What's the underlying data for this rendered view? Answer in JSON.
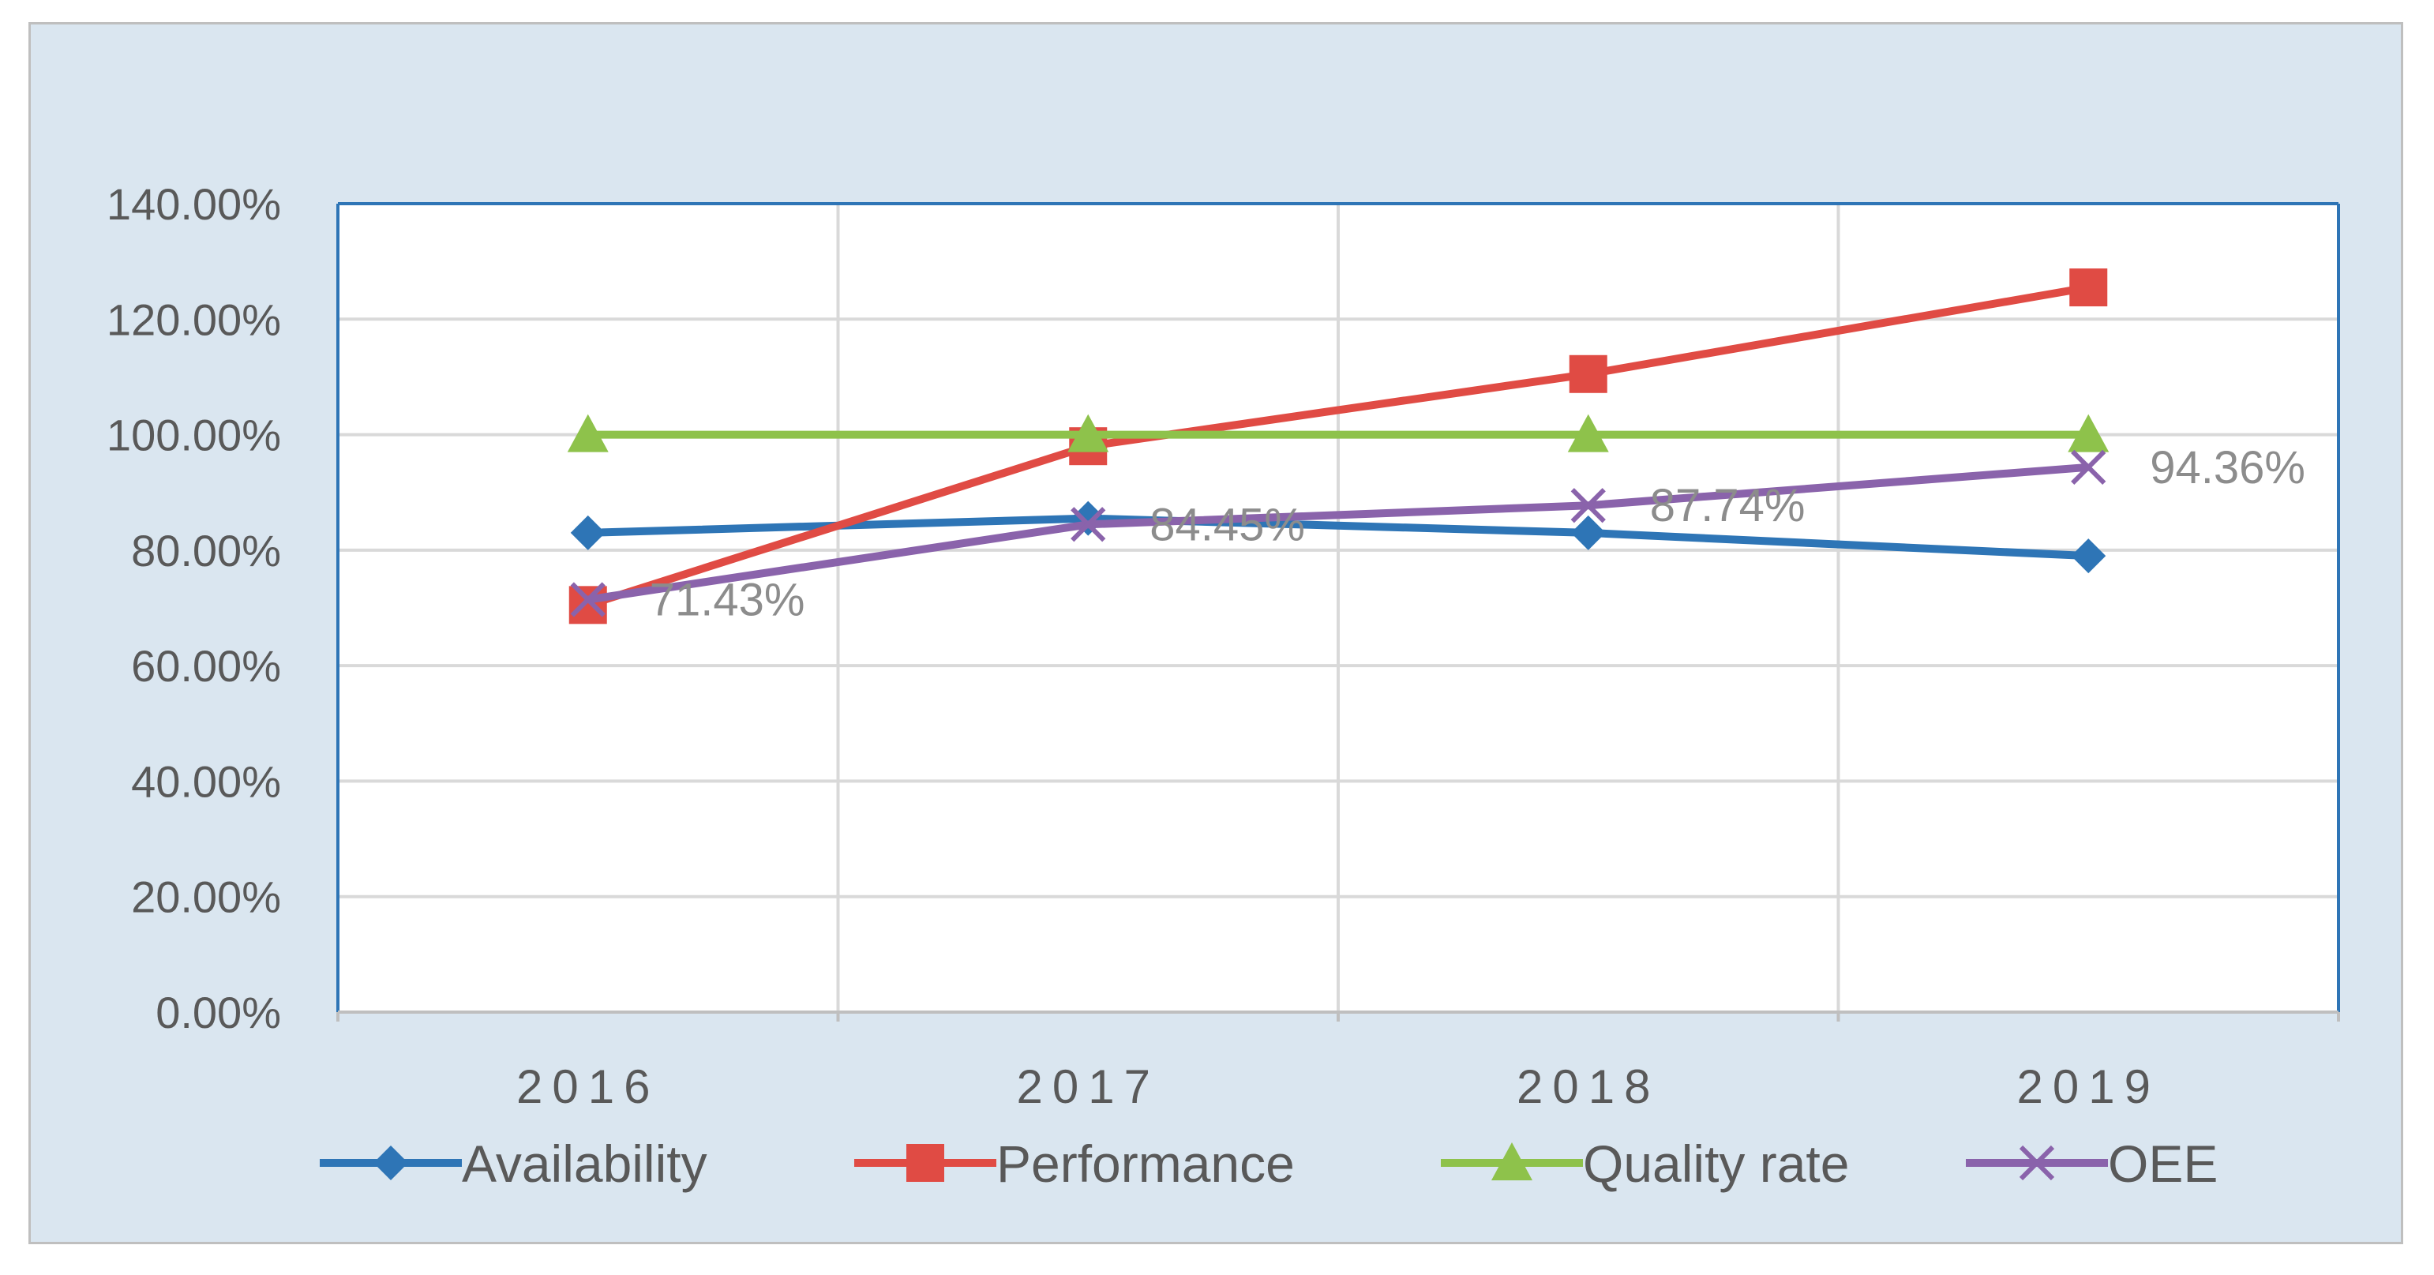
{
  "chart_data": {
    "type": "line",
    "title": "",
    "xlabel": "",
    "ylabel": "",
    "categories": [
      "2016",
      "2017",
      "2018",
      "2019"
    ],
    "ylim": [
      0,
      140
    ],
    "yticks": [
      0,
      20,
      40,
      60,
      80,
      100,
      120,
      140
    ],
    "ytick_labels": [
      "0.00%",
      "20.00%",
      "40.00%",
      "60.00%",
      "80.00%",
      "100.00%",
      "120.00%",
      "140.00%"
    ],
    "grid": true,
    "legend_position": "bottom",
    "series": [
      {
        "name": "Availability",
        "color": "#2e75b6",
        "marker": "diamond",
        "values": [
          83,
          85.5,
          83,
          79
        ]
      },
      {
        "name": "Performance",
        "color": "#e04b44",
        "marker": "square",
        "values": [
          70.5,
          98,
          110.5,
          125.5
        ]
      },
      {
        "name": "Quality rate",
        "color": "#8ec24b",
        "marker": "triangle",
        "values": [
          100,
          100,
          100,
          100
        ]
      },
      {
        "name": "OEE",
        "color": "#8a63ab",
        "marker": "x",
        "values": [
          71.43,
          84.45,
          87.74,
          94.36
        ],
        "data_labels": [
          "71.43%",
          "84.45%",
          "87.74%",
          "94.36%"
        ]
      }
    ]
  }
}
